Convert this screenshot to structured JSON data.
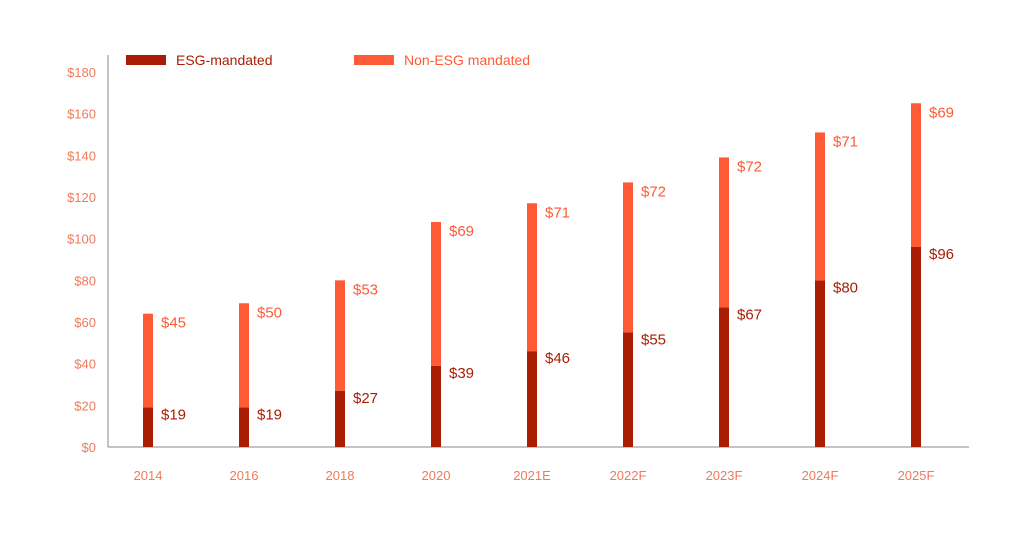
{
  "colors": {
    "esg": "#A91D05",
    "non_esg": "#FF5A36",
    "axis_text": "#F07A5A",
    "axis_line": "#8a8a8a"
  },
  "chart_data": {
    "type": "bar",
    "stacked": true,
    "categories": [
      "2014",
      "2016",
      "2018",
      "2020",
      "2021E",
      "2022F",
      "2023F",
      "2024F",
      "2025F"
    ],
    "series": [
      {
        "name": "ESG-mandated",
        "values": [
          19,
          19,
          27,
          39,
          46,
          55,
          67,
          80,
          96
        ],
        "labels": [
          "$19",
          "$19",
          "$27",
          "$39",
          "$46",
          "$55",
          "$67",
          "$80",
          "$96"
        ]
      },
      {
        "name": "Non-ESG mandated",
        "values": [
          45,
          50,
          53,
          69,
          71,
          72,
          72,
          71,
          69
        ],
        "labels": [
          "$45",
          "$50",
          "$53",
          "$69",
          "$71",
          "$72",
          "$72",
          "$71",
          "$69"
        ]
      }
    ],
    "ylim": [
      0,
      180
    ],
    "yticks": [
      0,
      20,
      40,
      60,
      80,
      100,
      120,
      140,
      160,
      180
    ],
    "ytick_labels": [
      "$0",
      "$20",
      "$40",
      "$60",
      "$80",
      "$100",
      "$120",
      "$140",
      "$160",
      "$180"
    ],
    "legend_position": "top-left",
    "grid": false
  }
}
